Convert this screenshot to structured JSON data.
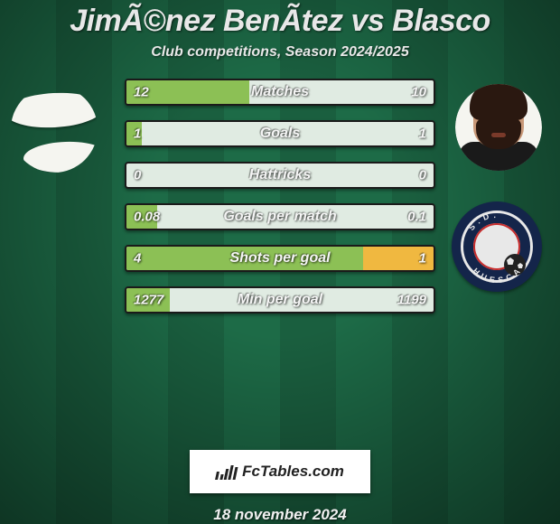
{
  "title": {
    "player_left": "JimÃ©nez BenÃ­tez",
    "vs": "vs",
    "player_right": "Blasco"
  },
  "subtitle": "Club competitions, Season 2024/2025",
  "colors": {
    "bg_stripe_a": "#1d6b47",
    "bg_stripe_b": "#1a5f3f",
    "bar_bg": "#e0ebe2",
    "bar_left": "#8cc055",
    "bar_right": "#f0b840",
    "bar_border": "#1a1a1a",
    "text_light": "#f5f5f5",
    "crest_primary": "#14254a",
    "crest_accent": "#c72c2c"
  },
  "avatars": {
    "left": {
      "type": "photo-redacted"
    },
    "right": {
      "type": "photo-redacted"
    },
    "right_crest": "S.D. Huesca"
  },
  "stats": [
    {
      "label": "Matches",
      "left_val": "12",
      "right_val": "10",
      "left_pct": 40,
      "right_pct": 0
    },
    {
      "label": "Goals",
      "left_val": "1",
      "right_val": "1",
      "left_pct": 5,
      "right_pct": 0
    },
    {
      "label": "Hattricks",
      "left_val": "0",
      "right_val": "0",
      "left_pct": 0,
      "right_pct": 0
    },
    {
      "label": "Goals per match",
      "left_val": "0.08",
      "right_val": "0.1",
      "left_pct": 10,
      "right_pct": 0
    },
    {
      "label": "Shots per goal",
      "left_val": "4",
      "right_val": "1",
      "left_pct": 77,
      "right_pct": 23
    },
    {
      "label": "Min per goal",
      "left_val": "1277",
      "right_val": "1199",
      "left_pct": 14,
      "right_pct": 0
    }
  ],
  "footer": {
    "brand": "FcTables.com",
    "date": "18 november 2024"
  }
}
